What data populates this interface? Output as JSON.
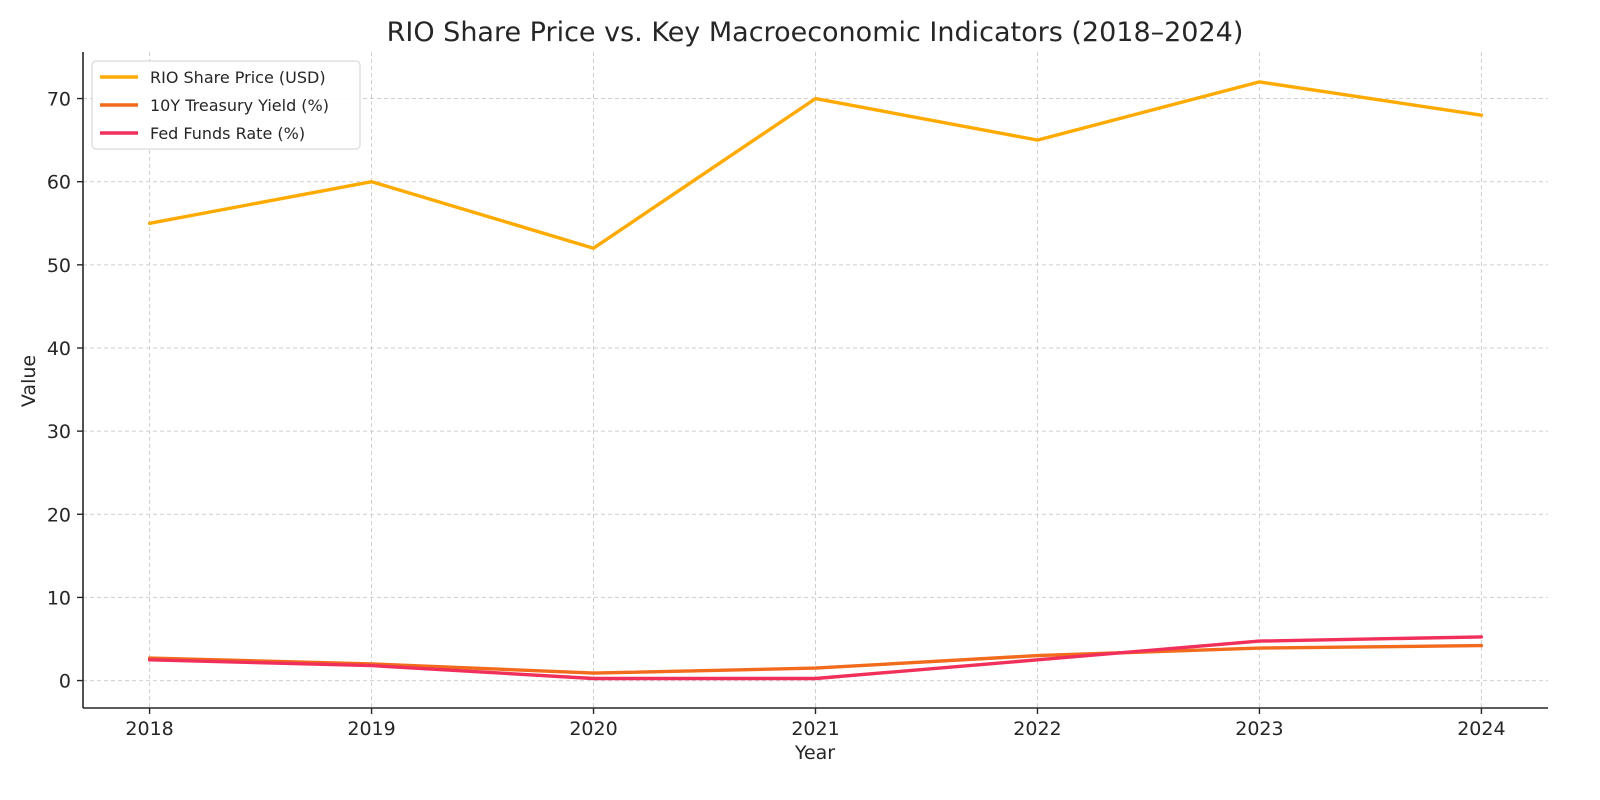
{
  "chart_data": {
    "type": "line",
    "title": "RIO Share Price vs. Key Macroeconomic Indicators (2018–2024)",
    "xlabel": "Year",
    "ylabel": "Value",
    "x": [
      2018,
      2019,
      2020,
      2021,
      2022,
      2023,
      2024
    ],
    "x_ticks": [
      "2018",
      "2019",
      "2020",
      "2021",
      "2022",
      "2023",
      "2024"
    ],
    "y_ticks": [
      "0",
      "10",
      "20",
      "30",
      "40",
      "50",
      "60",
      "70"
    ],
    "xlim": [
      2017.7,
      2024.3
    ],
    "ylim": [
      -3.3,
      75.6
    ],
    "grid": true,
    "legend_position": "upper-left",
    "series": [
      {
        "name": "RIO Share Price (USD)",
        "color": "#FFAA00",
        "values": [
          55,
          60,
          52,
          70,
          65,
          72,
          68
        ]
      },
      {
        "name": "10Y Treasury Yield (%)",
        "color": "#F26B1D",
        "values": [
          2.7,
          2.0,
          0.9,
          1.5,
          3.0,
          3.9,
          4.2
        ]
      },
      {
        "name": "Fed Funds Rate (%)",
        "color": "#F0305A",
        "values": [
          2.5,
          1.8,
          0.25,
          0.25,
          2.5,
          4.75,
          5.25
        ]
      }
    ]
  }
}
